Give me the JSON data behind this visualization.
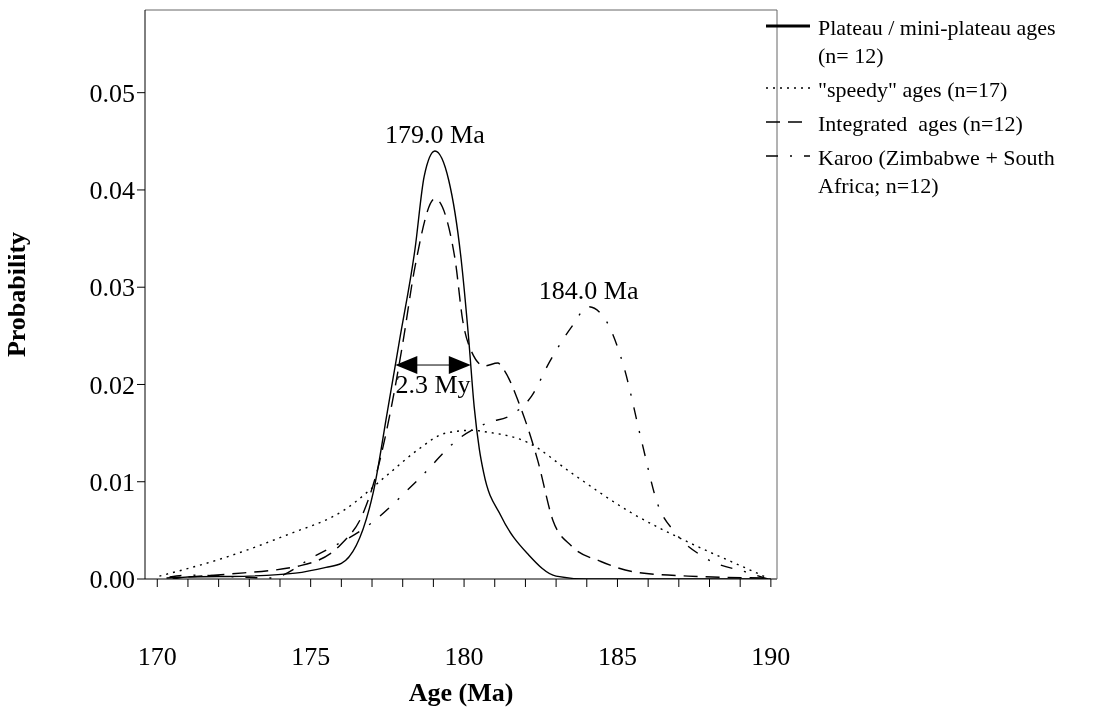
{
  "chart_data": {
    "type": "line",
    "xlabel": "Age (Ma)",
    "ylabel": "Probability",
    "xlim": [
      169.6,
      190.2
    ],
    "ylim": [
      0,
      0.0585
    ],
    "xticks": [
      {
        "value": 170,
        "label": "170"
      },
      {
        "value": 171,
        "label": null
      },
      {
        "value": 172,
        "label": null
      },
      {
        "value": 173,
        "label": null
      },
      {
        "value": 174,
        "label": null
      },
      {
        "value": 175,
        "label": "175"
      },
      {
        "value": 176,
        "label": null
      },
      {
        "value": 177,
        "label": null
      },
      {
        "value": 178,
        "label": null
      },
      {
        "value": 179,
        "label": null
      },
      {
        "value": 180,
        "label": "180"
      },
      {
        "value": 181,
        "label": null
      },
      {
        "value": 182,
        "label": null
      },
      {
        "value": 183,
        "label": null
      },
      {
        "value": 184,
        "label": null
      },
      {
        "value": 185,
        "label": "185"
      },
      {
        "value": 186,
        "label": null
      },
      {
        "value": 187,
        "label": null
      },
      {
        "value": 188,
        "label": null
      },
      {
        "value": 189,
        "label": null
      },
      {
        "value": 190,
        "label": "190"
      }
    ],
    "yticks": [
      {
        "value": 0,
        "label": "0.00"
      },
      {
        "value": 0.01,
        "label": "0.01"
      },
      {
        "value": 0.02,
        "label": "0.02"
      },
      {
        "value": 0.03,
        "label": "0.03"
      },
      {
        "value": 0.04,
        "label": "0.04"
      },
      {
        "value": 0.05,
        "label": "0.05"
      }
    ],
    "grid": false,
    "legend": "top right",
    "series": [
      {
        "name": "Plateau / mini-plateau ages (n= 12)",
        "color": "#000000",
        "line_style": "solid",
        "x": [
          170.5,
          171,
          173,
          174.5,
          175.5,
          176.0,
          177.04,
          177.5,
          177.9,
          178.4,
          178.7,
          179.05,
          179.5,
          179.9,
          180.15,
          180.33,
          180.5,
          180.64,
          181.2,
          182.1,
          183.0,
          184,
          190
        ],
        "values": [
          0,
          0.0002,
          0.0003,
          0.0006,
          0.0012,
          0.0016,
          0.0089,
          0.0172,
          0.0246,
          0.0339,
          0.0414,
          0.044,
          0.041,
          0.033,
          0.0247,
          0.0177,
          0.0133,
          0.0109,
          0.0065,
          0.0025,
          0.0003,
          0,
          0
        ]
      },
      {
        "name": "\"speedy\" ages (n=17)",
        "color": "#000000",
        "line_style": "dotted",
        "x": [
          170.07,
          172.3,
          174.2,
          176.1,
          177.5,
          178.5,
          179.4,
          180.33,
          180.55,
          182.1,
          183.5,
          185.4,
          187.3,
          189.2,
          189.9
        ],
        "values": [
          0.0003,
          0.0023,
          0.0045,
          0.0071,
          0.0107,
          0.0133,
          0.015,
          0.0153,
          0.0152,
          0.014,
          0.0109,
          0.0069,
          0.0038,
          0.0011,
          0.0001
        ]
      },
      {
        "name": "Integrated  ages (n=12)",
        "color": "#000000",
        "line_style": "dashed",
        "x": [
          170.3,
          172.3,
          174.7,
          176.0,
          176.7,
          177.2,
          177.6,
          178.0,
          178.4,
          179.05,
          179.7,
          179.96,
          180.24,
          180.66,
          181.1,
          181.3,
          181.8,
          182.4,
          182.9,
          183.5,
          184.46,
          185.6,
          187.3,
          190
        ],
        "values": [
          0.0001,
          0.0005,
          0.0014,
          0.0036,
          0.0067,
          0.0115,
          0.0172,
          0.0242,
          0.0321,
          0.0391,
          0.033,
          0.0265,
          0.0234,
          0.0219,
          0.0222,
          0.0215,
          0.018,
          0.0122,
          0.006,
          0.0034,
          0.0018,
          0.0007,
          0.0003,
          0.0001
        ]
      },
      {
        "name": "Karoo (Zimbabwe + South Africa; n=12)",
        "color": "#000000",
        "line_style": "dashdot",
        "x": [
          170.4,
          171,
          173.7,
          175.1,
          177.0,
          178.5,
          179.9,
          180.8,
          181.5,
          182.2,
          182.8,
          183.5,
          184.06,
          184.6,
          185.2,
          185.8,
          186.3,
          186.9,
          187.9,
          189.2,
          189.9
        ],
        "values": [
          0.0002,
          0.0004,
          0.0001,
          0.0023,
          0.0058,
          0.0102,
          0.0146,
          0.0161,
          0.0168,
          0.0188,
          0.0224,
          0.0259,
          0.028,
          0.0267,
          0.0219,
          0.014,
          0.0078,
          0.0047,
          0.0021,
          0.0007,
          0
        ]
      }
    ],
    "annotations": [
      {
        "text": "179.0 Ma",
        "x": 179.05,
        "y": 0.044
      },
      {
        "text": "184.0 Ma",
        "x": 184.06,
        "y": 0.028
      },
      "2.3 My"
    ]
  }
}
